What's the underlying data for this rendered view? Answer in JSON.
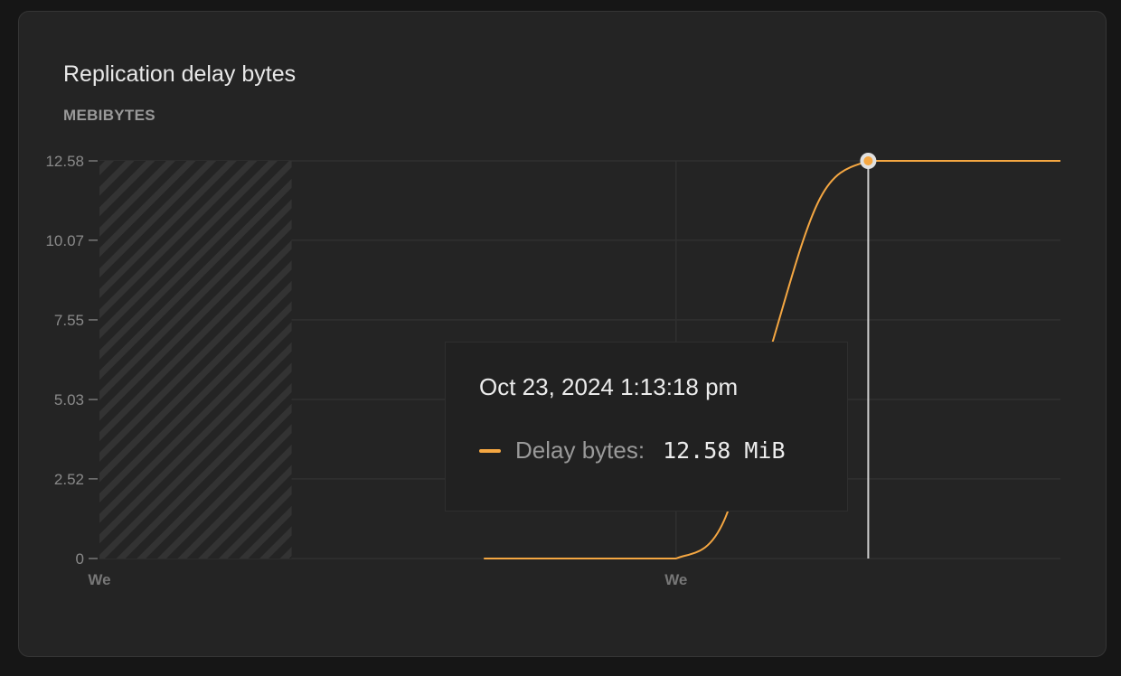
{
  "chart_data": {
    "type": "line",
    "title": "Replication delay bytes",
    "ylabel": "MEBIBYTES",
    "ylim": [
      0,
      12.58
    ],
    "y_ticks": [
      "0",
      "2.52",
      "5.03",
      "7.55",
      "10.07",
      "12.58"
    ],
    "x_ticks": [
      "We",
      "We"
    ],
    "grid": true,
    "no_data_region": "hatched",
    "series": [
      {
        "name": "Delay bytes",
        "color": "#f5a742",
        "values": [
          null,
          null,
          null,
          null,
          null,
          null,
          null,
          null,
          0,
          0,
          0,
          0,
          0,
          1.2,
          6.8,
          11.4,
          12.58,
          12.58,
          12.58,
          12.58,
          12.58
        ]
      }
    ],
    "tooltip": {
      "date": "Oct 23, 2024 1:13:18 pm",
      "label": "Delay bytes:",
      "value": "12.58 MiB",
      "index": 16
    }
  }
}
